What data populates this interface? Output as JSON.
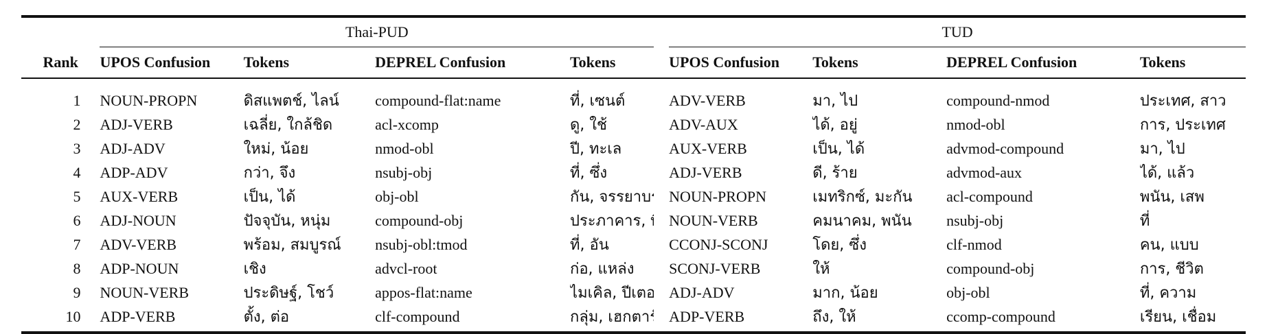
{
  "groups": {
    "left": "Thai-PUD",
    "right": "TUD"
  },
  "headers": {
    "rank": "Rank",
    "upos1": "UPOS Confusion",
    "tok1": "Tokens",
    "deprel1": "DEPREL Confusion",
    "tok2": "Tokens",
    "upos2": "UPOS Confusion",
    "tok3": "Tokens",
    "deprel2": "DEPREL Confusion",
    "tok4": "Tokens"
  },
  "rows": [
    {
      "rank": "1",
      "pud_upos": "NOUN-PROPN",
      "pud_upos_tok": "ดิสแพตช์, ไลน์",
      "pud_dep": "compound-flat:name",
      "pud_dep_tok": "ที่, เซนต์",
      "tud_upos": "ADV-VERB",
      "tud_upos_tok": "มา, ไป",
      "tud_dep": "compound-nmod",
      "tud_dep_tok": "ประเทศ, สาว"
    },
    {
      "rank": "2",
      "pud_upos": "ADJ-VERB",
      "pud_upos_tok": "เฉลี่ย, ใกล้ชิด",
      "pud_dep": "acl-xcomp",
      "pud_dep_tok": "ดู, ใช้",
      "tud_upos": "ADV-AUX",
      "tud_upos_tok": "ได้, อยู่",
      "tud_dep": "nmod-obl",
      "tud_dep_tok": "การ, ประเทศ"
    },
    {
      "rank": "3",
      "pud_upos": "ADJ-ADV",
      "pud_upos_tok": "ใหม่, น้อย",
      "pud_dep": "nmod-obl",
      "pud_dep_tok": "ปี, ทะเล",
      "tud_upos": "AUX-VERB",
      "tud_upos_tok": "เป็น, ได้",
      "tud_dep": "advmod-compound",
      "tud_dep_tok": "มา, ไป"
    },
    {
      "rank": "4",
      "pud_upos": "ADP-ADV",
      "pud_upos_tok": "กว่า, จึง",
      "pud_dep": "nsubj-obj",
      "pud_dep_tok": "ที่, ซึ่ง",
      "tud_upos": "ADJ-VERB",
      "tud_upos_tok": "ดี, ร้าย",
      "tud_dep": "advmod-aux",
      "tud_dep_tok": "ได้, แล้ว"
    },
    {
      "rank": "5",
      "pud_upos": "AUX-VERB",
      "pud_upos_tok": "เป็น, ได้",
      "pud_dep": "obj-obl",
      "pud_dep_tok": "กัน, จรรยาบรรณ",
      "tud_upos": "NOUN-PROPN",
      "tud_upos_tok": "เมทริกซ์, มะกัน",
      "tud_dep": "acl-compound",
      "tud_dep_tok": "พนัน, เสพ"
    },
    {
      "rank": "6",
      "pud_upos": "ADJ-NOUN",
      "pud_upos_tok": "ปัจจุบัน, หนุ่ม",
      "pud_dep": "compound-obj",
      "pud_dep_tok": "ประภาคาร, พื้นฐาน",
      "tud_upos": "NOUN-VERB",
      "tud_upos_tok": "คมนาคม, พนัน",
      "tud_dep": "nsubj-obj",
      "tud_dep_tok": "ที่"
    },
    {
      "rank": "7",
      "pud_upos": "ADV-VERB",
      "pud_upos_tok": "พร้อม, สมบูรณ์",
      "pud_dep": "nsubj-obl:tmod",
      "pud_dep_tok": "ที่, อัน",
      "tud_upos": "CCONJ-SCONJ",
      "tud_upos_tok": "โดย, ซึ่ง",
      "tud_dep": "clf-nmod",
      "tud_dep_tok": "คน, แบบ"
    },
    {
      "rank": "8",
      "pud_upos": "ADP-NOUN",
      "pud_upos_tok": "เชิง",
      "pud_dep": "advcl-root",
      "pud_dep_tok": "ก่อ, แหล่ง",
      "tud_upos": "SCONJ-VERB",
      "tud_upos_tok": "ให้",
      "tud_dep": "compound-obj",
      "tud_dep_tok": "การ, ชีวิต"
    },
    {
      "rank": "9",
      "pud_upos": "NOUN-VERB",
      "pud_upos_tok": "ประดิษฐ์, โชว์",
      "pud_dep": "appos-flat:name",
      "pud_dep_tok": "ไมเคิล, ปีเตอร์",
      "tud_upos": "ADJ-ADV",
      "tud_upos_tok": "มาก, น้อย",
      "tud_dep": "obj-obl",
      "tud_dep_tok": "ที่, ความ"
    },
    {
      "rank": "10",
      "pud_upos": "ADP-VERB",
      "pud_upos_tok": "ตั้ง, ต่อ",
      "pud_dep": "clf-compound",
      "pud_dep_tok": "กลุ่ม, เฮกตาร์",
      "tud_upos": "ADP-VERB",
      "tud_upos_tok": "ถึง, ให้",
      "tud_dep": "ccomp-compound",
      "tud_dep_tok": "เรียน, เชื่อม"
    }
  ]
}
